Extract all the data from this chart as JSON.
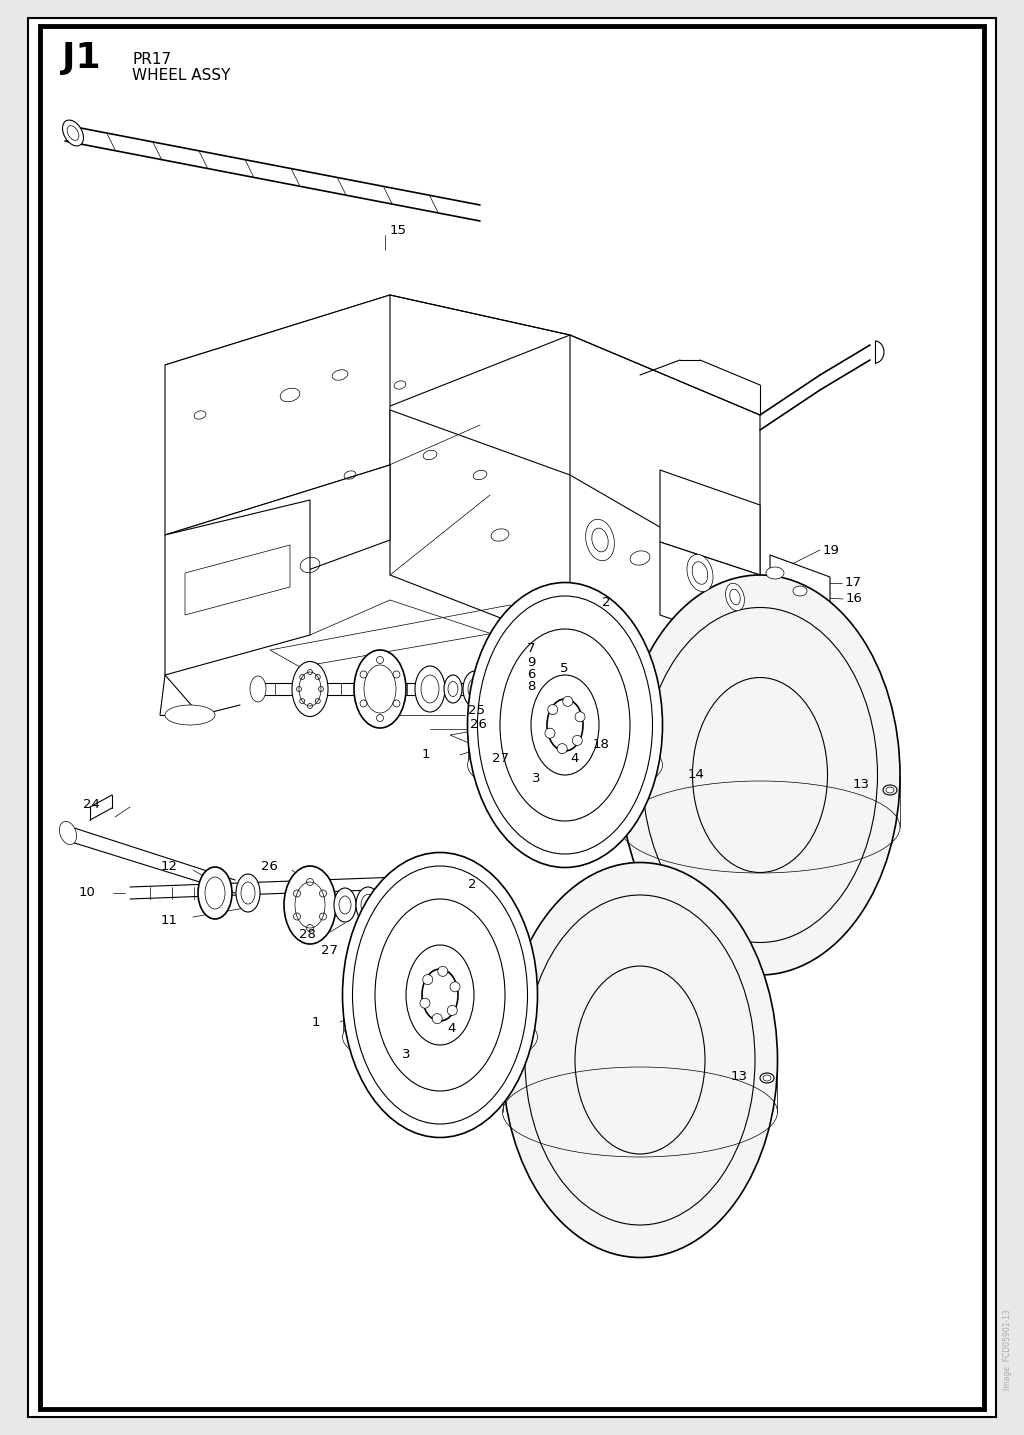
{
  "title_code": "J1",
  "title_part": "PR17",
  "title_name": "WHEEL ASSY",
  "background_color": "#ffffff",
  "border_color": "#000000",
  "line_color": "#000000",
  "text_color": "#000000",
  "page_bg": "#e8e8e8",
  "watermark_text": "Image: FCD05901-13"
}
